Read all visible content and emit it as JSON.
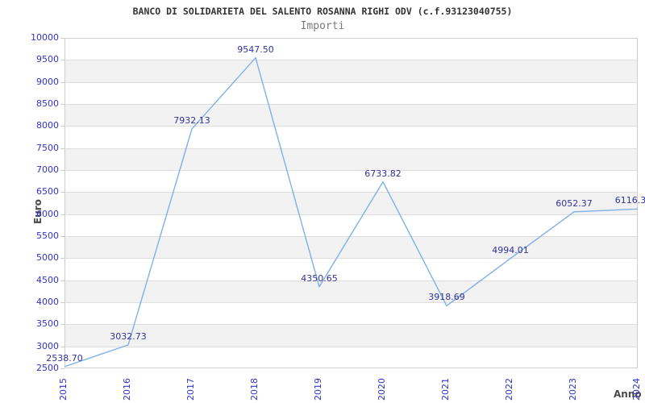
{
  "header": {
    "title": "BANCO DI SOLIDARIETA DEL SALENTO ROSANNA RIGHI ODV (c.f.93123040755)",
    "subtitle": "Importi"
  },
  "chart_data": {
    "type": "line",
    "title": "Importi",
    "x": [
      "2015",
      "2016",
      "2017",
      "2018",
      "2019",
      "2020",
      "2021",
      "2022",
      "2023",
      "2024"
    ],
    "series": [
      {
        "name": "Importi",
        "values": [
          2538.7,
          3032.73,
          7932.13,
          9547.5,
          4350.65,
          6733.82,
          3918.69,
          4994.01,
          6052.37,
          6116.3
        ]
      }
    ],
    "point_labels": [
      "2538.70",
      "3032.73",
      "7932.13",
      "9547.50",
      "4350.65",
      "6733.82",
      "3918.69",
      "4994.01",
      "6052.37",
      "6116.3"
    ],
    "xlabel": "Anno",
    "ylabel": "Euro",
    "ylim": [
      2500,
      10000
    ],
    "ytick_step": 500,
    "grid": "horizontal-bands",
    "legend": "none",
    "colors": {
      "line": "#7fb0e8",
      "tick_labels": "#3232cd",
      "point_labels": "#333399",
      "band": "#f2f2f2",
      "gridline": "#dedede",
      "plot_border": "#cfcfcf",
      "axis_titles": "#4a4a4a",
      "title": "#333333",
      "subtitle": "#7a7a7a"
    }
  }
}
